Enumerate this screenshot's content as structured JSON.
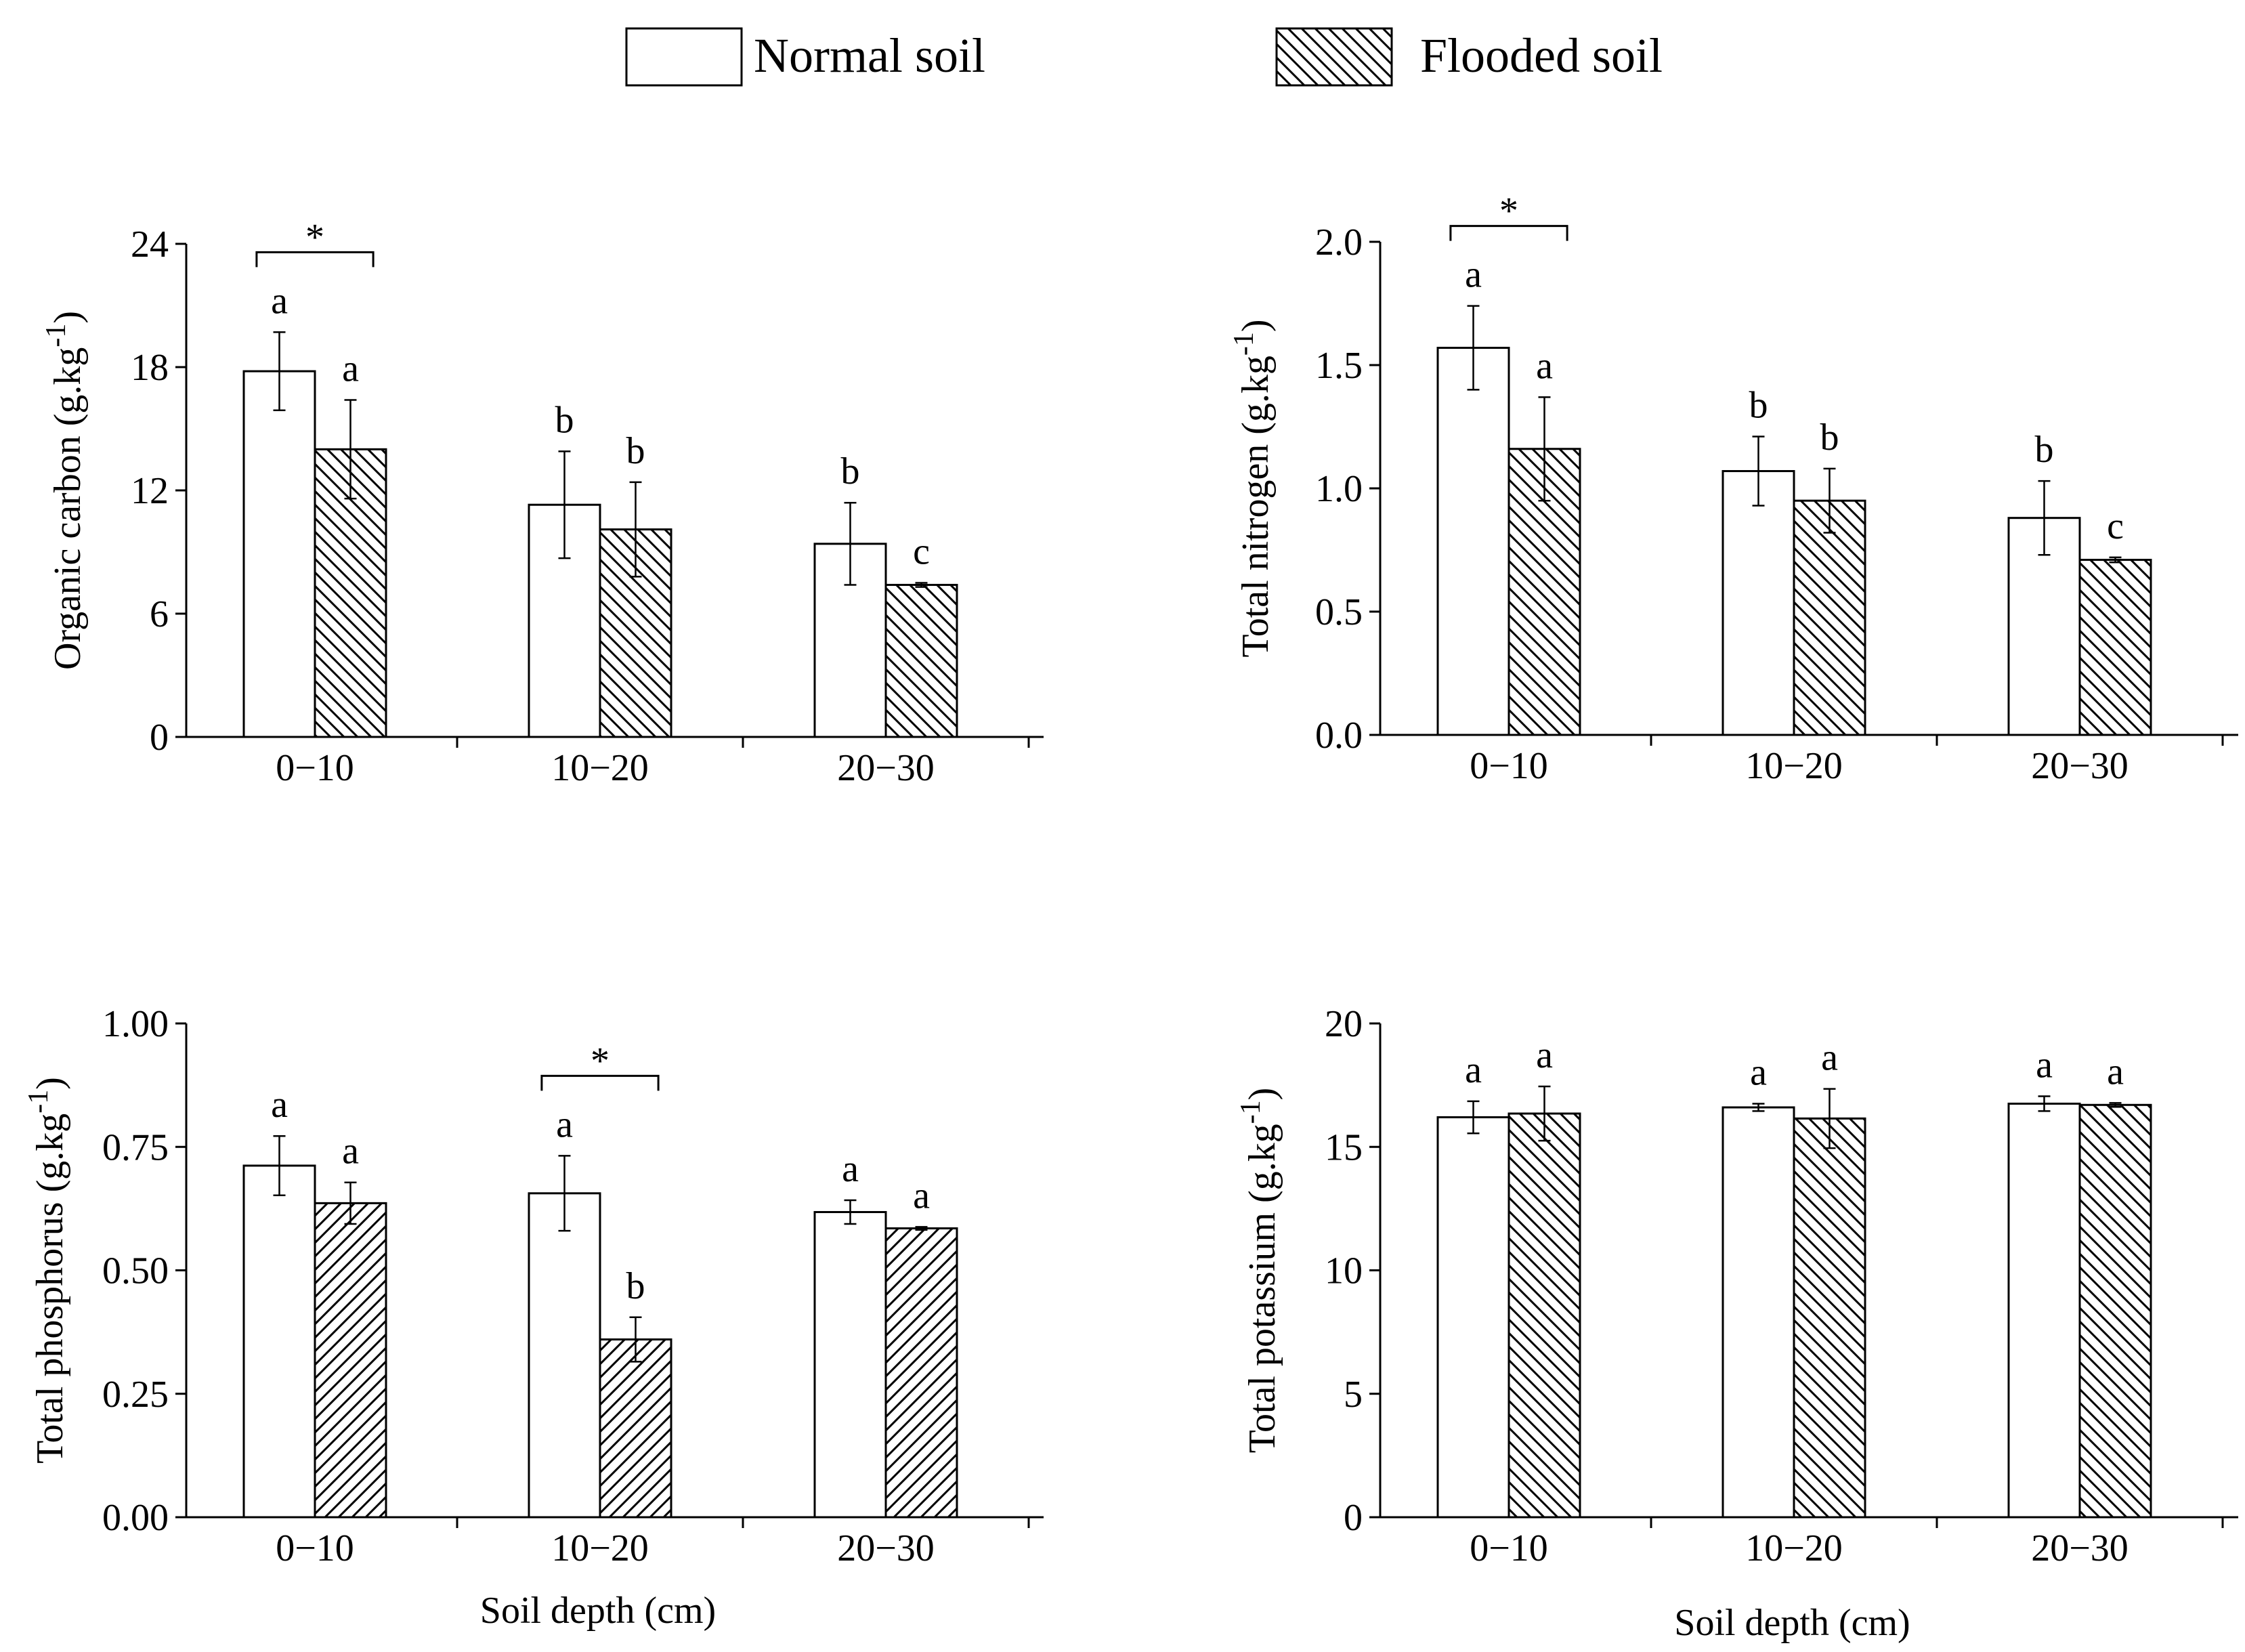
{
  "legend": [
    {
      "label": "Normal soil",
      "style": "open"
    },
    {
      "label": "Flooded soil",
      "style": "hatched"
    }
  ],
  "chart_data": [
    {
      "type": "bar",
      "ylabel": "Organic carbon (g.kg",
      "ylabel_sup": "-1",
      "ylabel_close": ")",
      "xlabel": "",
      "categories": [
        "0−10",
        "10−20",
        "20−30"
      ],
      "ylim": [
        0,
        24
      ],
      "yticks": [
        0,
        6,
        12,
        18,
        24
      ],
      "tick_decimals": 0,
      "series": [
        {
          "name": "Normal soil",
          "values": [
            17.8,
            11.3,
            9.4
          ],
          "errors": [
            1.9,
            2.6,
            2.0
          ],
          "letters": [
            "a",
            "b",
            "b"
          ]
        },
        {
          "name": "Flooded soil",
          "values": [
            14.0,
            10.1,
            7.4
          ],
          "errors": [
            2.4,
            2.3,
            0.1
          ],
          "letters": [
            "a",
            "b",
            "c"
          ],
          "hatch": "back"
        }
      ],
      "significance": [
        {
          "category": 0,
          "label": "*"
        }
      ]
    },
    {
      "type": "bar",
      "ylabel": "Total nitrogen (g.kg",
      "ylabel_sup": "-1",
      "ylabel_close": ")",
      "xlabel": "",
      "categories": [
        "0−10",
        "10−20",
        "20−30"
      ],
      "ylim": [
        0,
        2.0
      ],
      "yticks": [
        0,
        0.5,
        1.0,
        1.5,
        2.0
      ],
      "tick_decimals": 1,
      "series": [
        {
          "name": "Normal soil",
          "values": [
            1.57,
            1.07,
            0.88
          ],
          "errors": [
            0.17,
            0.14,
            0.15
          ],
          "letters": [
            "a",
            "b",
            "b"
          ]
        },
        {
          "name": "Flooded soil",
          "values": [
            1.16,
            0.95,
            0.71
          ],
          "errors": [
            0.21,
            0.13,
            0.01
          ],
          "letters": [
            "a",
            "b",
            "c"
          ],
          "hatch": "back"
        }
      ],
      "significance": [
        {
          "category": 0,
          "label": "*"
        }
      ]
    },
    {
      "type": "bar",
      "ylabel": "Total phosphorus (g.kg",
      "ylabel_sup": "-1",
      "ylabel_close": ")",
      "xlabel": "Soil depth (cm)",
      "categories": [
        "0−10",
        "10−20",
        "20−30"
      ],
      "ylim": [
        0,
        1.0
      ],
      "yticks": [
        0,
        0.25,
        0.5,
        0.75,
        1.0
      ],
      "tick_decimals": 2,
      "series": [
        {
          "name": "Normal soil",
          "values": [
            0.712,
            0.656,
            0.618
          ],
          "errors": [
            0.06,
            0.076,
            0.024
          ],
          "letters": [
            "a",
            "a",
            "a"
          ]
        },
        {
          "name": "Flooded soil",
          "values": [
            0.636,
            0.36,
            0.585
          ],
          "errors": [
            0.042,
            0.045,
            0.003
          ],
          "letters": [
            "a",
            "b",
            "a"
          ],
          "hatch": "forward"
        }
      ],
      "significance": [
        {
          "category": 1,
          "label": "*"
        }
      ]
    },
    {
      "type": "bar",
      "ylabel": "Total potassium (g.kg",
      "ylabel_sup": "-1",
      "ylabel_close": ")",
      "xlabel": "Soil depth (cm)",
      "categories": [
        "0−10",
        "10−20",
        "20−30"
      ],
      "ylim": [
        0,
        20
      ],
      "yticks": [
        0,
        5,
        10,
        15,
        20
      ],
      "tick_decimals": 0,
      "series": [
        {
          "name": "Normal soil",
          "values": [
            16.2,
            16.6,
            16.75
          ],
          "errors": [
            0.65,
            0.15,
            0.3
          ],
          "letters": [
            "a",
            "a",
            "a"
          ]
        },
        {
          "name": "Flooded soil",
          "values": [
            16.35,
            16.15,
            16.7
          ],
          "errors": [
            1.1,
            1.2,
            0.08
          ],
          "letters": [
            "a",
            "a",
            "a"
          ],
          "hatch": "back"
        }
      ],
      "significance": []
    }
  ]
}
